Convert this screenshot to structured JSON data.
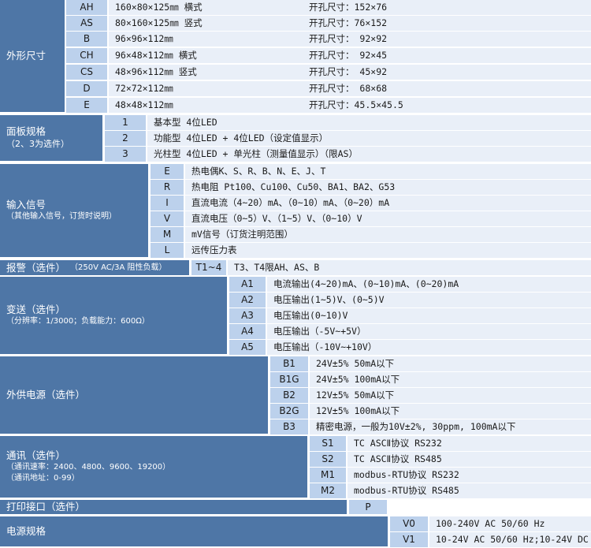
{
  "sections": {
    "shape": {
      "title": "外形尺寸",
      "rows": [
        {
          "code": "AH",
          "desc": "160×80×125㎜ 横式",
          "hole": "开孔尺寸：152×76"
        },
        {
          "code": "AS",
          "desc": " 80×160×125㎜ 竖式",
          "hole": "开孔尺寸：76×152"
        },
        {
          "code": "B",
          "desc": " 96×96×112㎜",
          "hole": "开孔尺寸： 92×92"
        },
        {
          "code": "CH",
          "desc": " 96×48×112㎜ 横式",
          "hole": "开孔尺寸： 92×45"
        },
        {
          "code": "CS",
          "desc": " 48×96×112㎜ 竖式",
          "hole": "开孔尺寸： 45×92"
        },
        {
          "code": "D",
          "desc": " 72×72×112㎜",
          "hole": "开孔尺寸： 68×68"
        },
        {
          "code": "E",
          "desc": " 48×48×112㎜",
          "hole": "开孔尺寸：45.5×45.5"
        }
      ]
    },
    "panel": {
      "title": "面板规格",
      "subtitle": "（2、3为选件）",
      "rows": [
        {
          "code": "1",
          "desc": "基本型 4位LED"
        },
        {
          "code": "2",
          "desc": "功能型 4位LED + 4位LED（设定值显示）"
        },
        {
          "code": "3",
          "desc": "光柱型 4位LED + 单光柱（测量值显示）（限AS）"
        }
      ]
    },
    "input": {
      "title": "输入信号",
      "subtitle": "（其他输入信号，订货时说明）",
      "rows": [
        {
          "code": "E",
          "desc": "热电偶K、S、R、B、N、E、J、T"
        },
        {
          "code": "R",
          "desc": "热电阻 Pt100、Cu100、Cu50、BA1、BA2、G53"
        },
        {
          "code": "I",
          "desc": "直流电流（4~20）mA、（0~10）mA、（0~20）mA"
        },
        {
          "code": "V",
          "desc": "直流电压（0~5）V、（1~5）V、（0~10）V"
        },
        {
          "code": "M",
          "desc": "mV信号（订货注明范围）"
        },
        {
          "code": "L",
          "desc": "远传压力表"
        }
      ]
    },
    "alarm": {
      "title": "报警（选件）",
      "subtitle": "（250V AC/3A 阻性负载）",
      "code": "T1~4",
      "desc": "T3、T4限AH、AS、B"
    },
    "transmit": {
      "title": "变送（选件）",
      "subtitle": "（分辨率：1/3000；负载能力：600Ω）",
      "rows": [
        {
          "code": "A1",
          "desc": "电流输出(4~20)mA、(0~10)mA、(0~20)mA"
        },
        {
          "code": "A2",
          "desc": "电压输出(1~5)V、(0~5)V"
        },
        {
          "code": "A3",
          "desc": "电压输出(0~10)V"
        },
        {
          "code": "A4",
          "desc": "电压输出（-5V~+5V）"
        },
        {
          "code": "A5",
          "desc": "电压输出（-10V~+10V）"
        }
      ]
    },
    "power_out": {
      "title": "外供电源（选件）",
      "rows": [
        {
          "code": "B1",
          "desc": "24V±5% 50mA以下"
        },
        {
          "code": "B1G",
          "desc": "24V±5% 100mA以下"
        },
        {
          "code": "B2",
          "desc": "12V±5% 50mA以下"
        },
        {
          "code": "B2G",
          "desc": "12V±5% 100mA以下"
        },
        {
          "code": "B3",
          "desc": "精密电源，一般为10V±2%, 30ppm, 100mA以下"
        }
      ]
    },
    "comm": {
      "title": "通讯（选件）",
      "subtitle1": "（通讯速率：2400、4800、9600、19200）",
      "subtitle2": "（通讯地址：0-99）",
      "rows": [
        {
          "code": "S1",
          "desc": "TC ASCⅡ协议 RS232"
        },
        {
          "code": "S2",
          "desc": "TC ASCⅡ协议 RS485"
        },
        {
          "code": "M1",
          "desc": "modbus-RTU协议 RS232"
        },
        {
          "code": "M2",
          "desc": "modbus-RTU协议 RS485"
        }
      ]
    },
    "printer": {
      "title": "打印接口（选件）",
      "code": "P"
    },
    "power": {
      "title": "电源规格",
      "rows": [
        {
          "code": "V0",
          "desc": "100-240V AC 50/60 Hz"
        },
        {
          "code": "V1",
          "desc": "10-24V AC 50/60 Hz;10-24V DC"
        }
      ]
    }
  },
  "colors": {
    "block": "#4e76a6",
    "code_cell": "#bcd1ec",
    "desc_cell": "#e9eff8"
  }
}
